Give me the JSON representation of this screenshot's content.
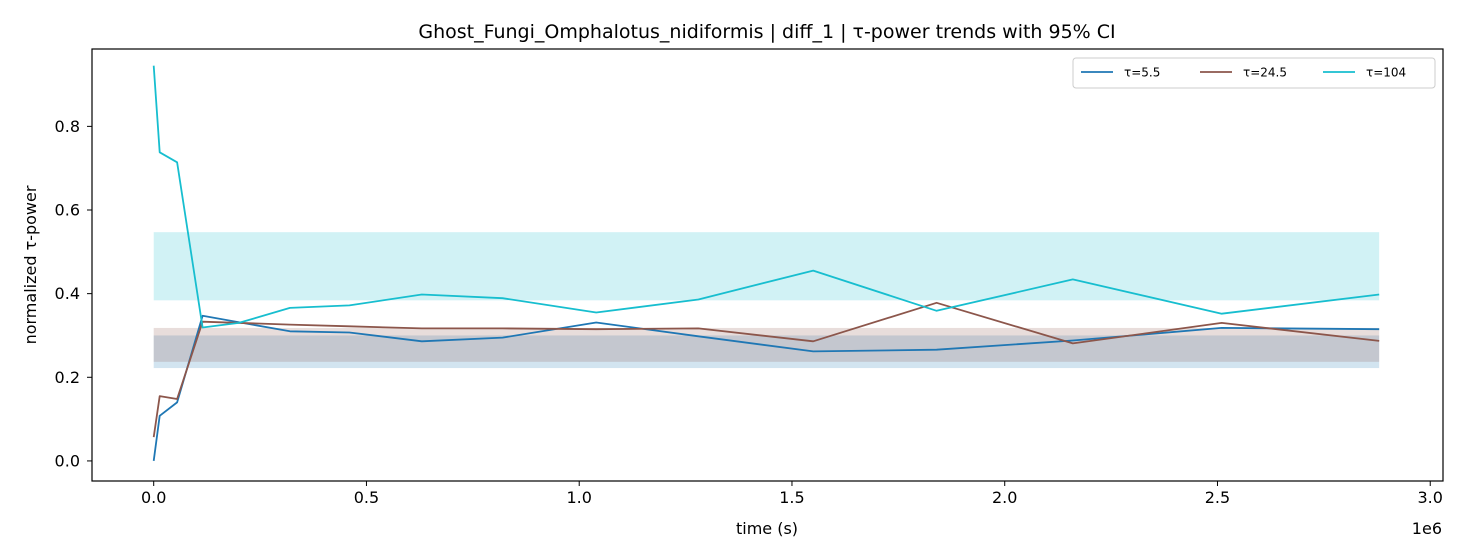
{
  "chart_data": {
    "type": "line",
    "title": "Ghost_Fungi_Omphalotus_nidiformis | diff_1 | τ-power trends with 95% CI",
    "xlabel": "time (s)",
    "ylabel": "normalized τ-power",
    "x_offset_label": "1e6",
    "xlim": [
      -145000,
      3030000
    ],
    "ylim": [
      -0.048,
      0.985
    ],
    "xticks": [
      0,
      500000,
      1000000,
      1500000,
      2000000,
      2500000,
      3000000
    ],
    "xtick_labels": [
      "0.0",
      "0.5",
      "1.0",
      "1.5",
      "2.0",
      "2.5",
      "3.0"
    ],
    "yticks": [
      0.0,
      0.2,
      0.4,
      0.6,
      0.8
    ],
    "ytick_labels": [
      "0.0",
      "0.2",
      "0.4",
      "0.6",
      "0.8"
    ],
    "grid": false,
    "legend_position": "top-right",
    "series": [
      {
        "name": "τ=5.5",
        "color": "#1f77b4",
        "ci": [
          0.222,
          0.3
        ],
        "x": [
          0,
          14000,
          55000,
          115000,
          320000,
          460000,
          630000,
          820000,
          1040000,
          1280000,
          1550000,
          1840000,
          2160000,
          2510000,
          2880000
        ],
        "y": [
          0.0,
          0.108,
          0.14,
          0.347,
          0.31,
          0.307,
          0.286,
          0.295,
          0.331,
          0.298,
          0.262,
          0.266,
          0.288,
          0.318,
          0.315
        ]
      },
      {
        "name": "τ=24.5",
        "color": "#8c564b",
        "ci": [
          0.237,
          0.318
        ],
        "x": [
          0,
          14000,
          55000,
          115000,
          320000,
          460000,
          630000,
          820000,
          1040000,
          1280000,
          1550000,
          1840000,
          2160000,
          2510000,
          2880000
        ],
        "y": [
          0.057,
          0.155,
          0.148,
          0.333,
          0.326,
          0.322,
          0.317,
          0.317,
          0.315,
          0.317,
          0.286,
          0.378,
          0.281,
          0.33,
          0.287
        ]
      },
      {
        "name": "τ=104",
        "color": "#17becf",
        "ci": [
          0.384,
          0.547
        ],
        "x": [
          0,
          14000,
          55000,
          115000,
          200000,
          320000,
          460000,
          630000,
          820000,
          1040000,
          1280000,
          1550000,
          1840000,
          2160000,
          2510000,
          2880000
        ],
        "y": [
          0.945,
          0.738,
          0.714,
          0.319,
          0.33,
          0.366,
          0.372,
          0.398,
          0.389,
          0.355,
          0.386,
          0.455,
          0.359,
          0.434,
          0.352,
          0.398
        ]
      }
    ]
  }
}
